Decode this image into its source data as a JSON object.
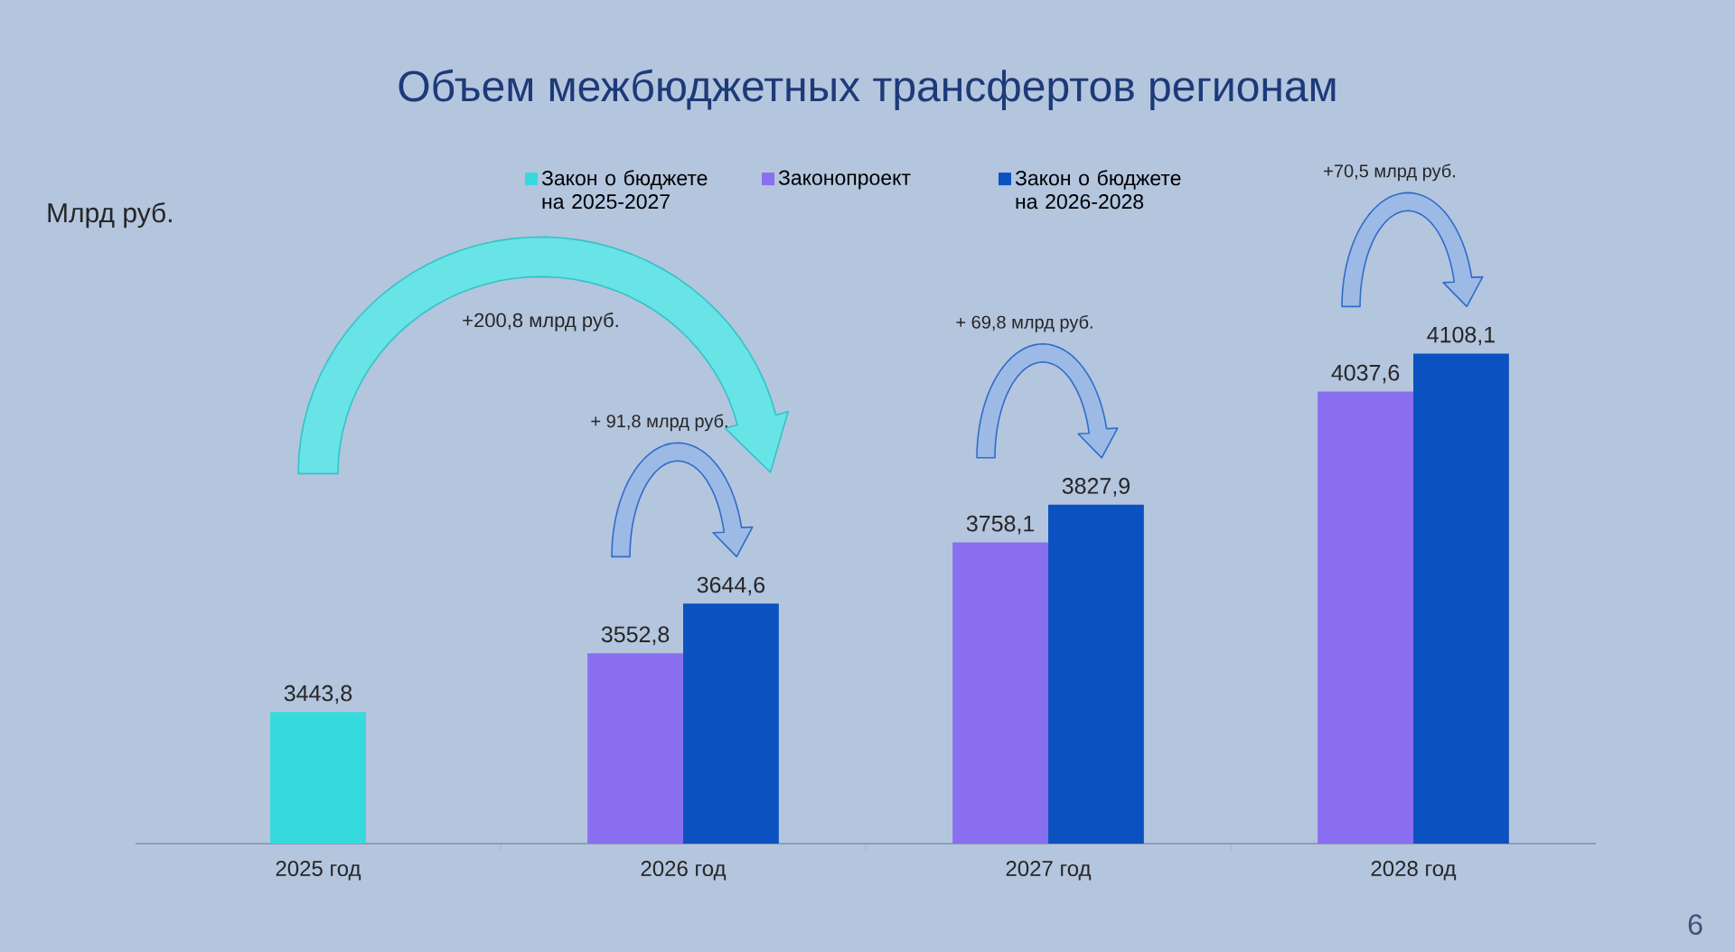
{
  "chart_data": {
    "type": "bar",
    "title": "Объем межбюджетных трансфертов регионам",
    "ylabel": "Млрд руб.",
    "categories": [
      "2025 год",
      "2026 год",
      "2027 год",
      "2028 год"
    ],
    "series": [
      {
        "name": "Закон о бюджете на 2025-2027",
        "color": "#36dadd",
        "values": [
          3443.8,
          null,
          null,
          null
        ],
        "value_labels": [
          "3443,8",
          null,
          null,
          null
        ]
      },
      {
        "name": "Законопроект",
        "color": "#8a6ef0",
        "values": [
          null,
          3552.8,
          3758.1,
          4037.6
        ],
        "value_labels": [
          null,
          "3552,8",
          "3758,1",
          "4037,6"
        ]
      },
      {
        "name": "Закон о бюджете на 2026-2028",
        "color": "#0b52c0",
        "values": [
          null,
          3644.6,
          3827.9,
          4108.1
        ],
        "value_labels": [
          null,
          "3644,6",
          "3827,9",
          "4108,1"
        ]
      }
    ],
    "ylim": [
      3200,
      4108.1
    ],
    "tick_labels": "x",
    "legend": "top",
    "annotations": [
      "+200,8 млрд руб.",
      "+ 91,8 млрд руб.",
      "+ 69,8 млрд руб.",
      "+70,5 млрд руб.",
      "6"
    ]
  }
}
